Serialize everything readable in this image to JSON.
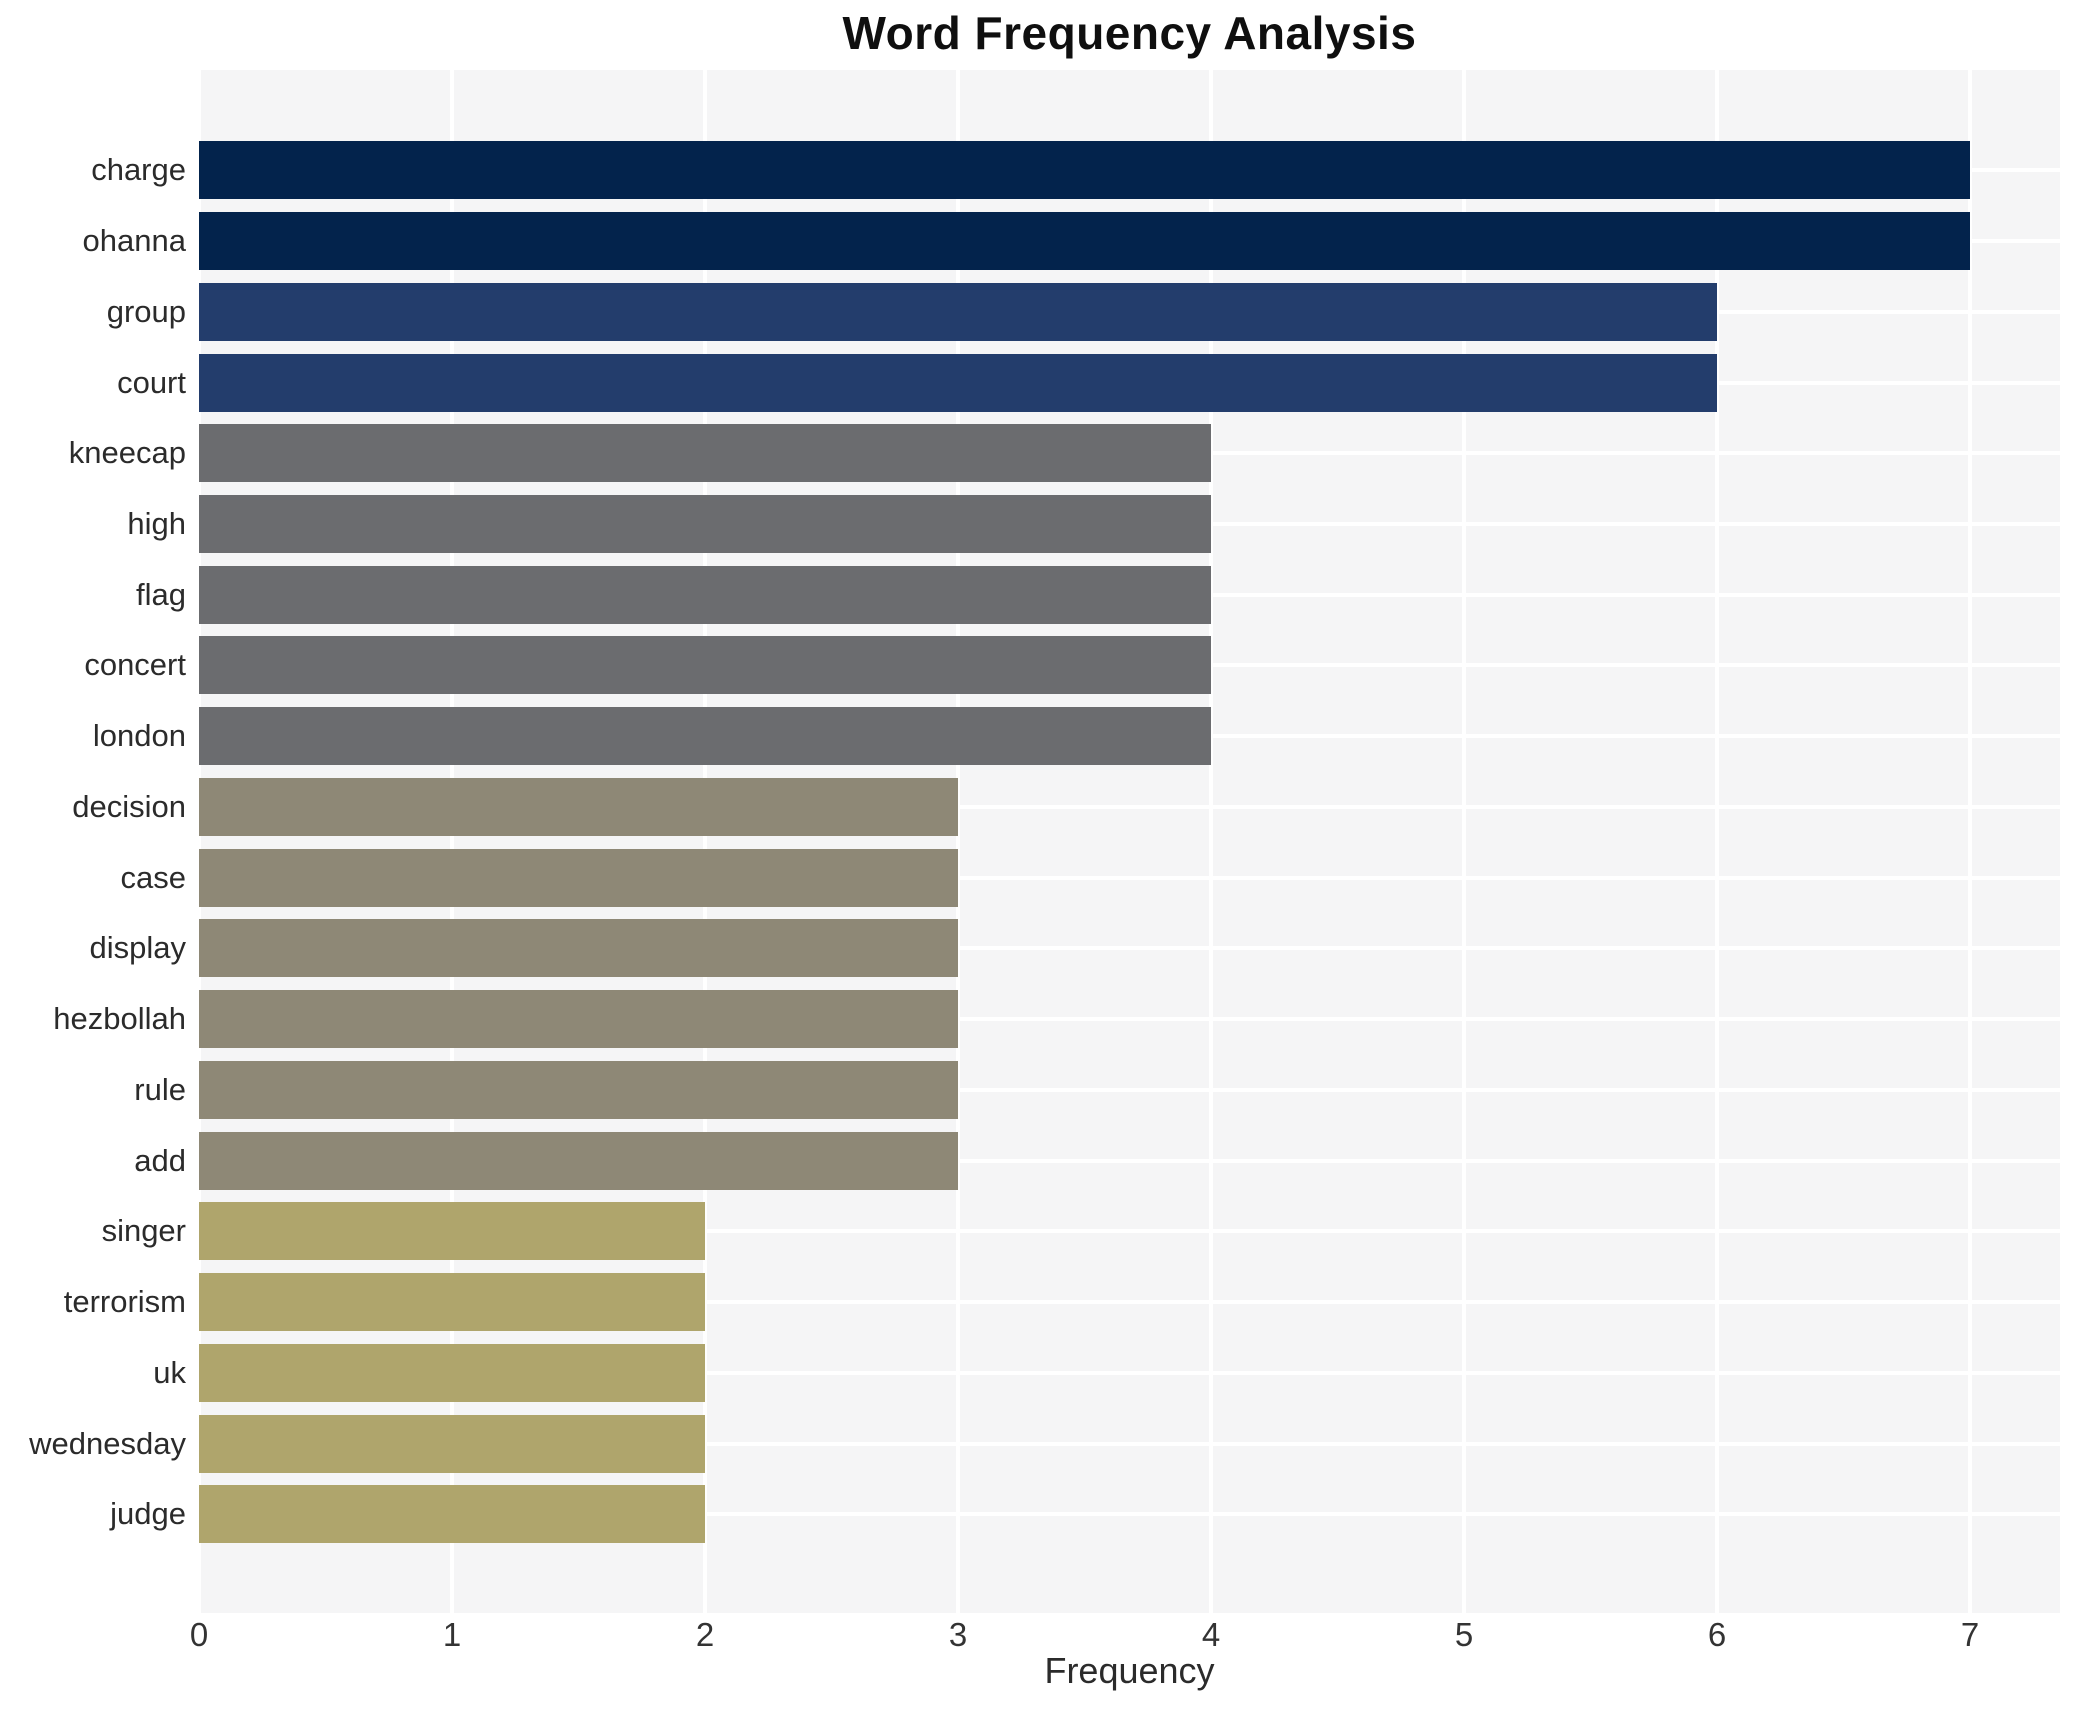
{
  "chart_data": {
    "type": "bar",
    "orientation": "horizontal",
    "title": "Word Frequency Analysis",
    "xlabel": "Frequency",
    "ylabel": "",
    "categories": [
      "charge",
      "ohanna",
      "group",
      "court",
      "kneecap",
      "high",
      "flag",
      "concert",
      "london",
      "decision",
      "case",
      "display",
      "hezbollah",
      "rule",
      "add",
      "singer",
      "terrorism",
      "uk",
      "wednesday",
      "judge"
    ],
    "values": [
      7,
      7,
      6,
      6,
      4,
      4,
      4,
      4,
      4,
      3,
      3,
      3,
      3,
      3,
      3,
      2,
      2,
      2,
      2,
      2
    ],
    "xlim": [
      0,
      7
    ],
    "xticks": [
      0,
      1,
      2,
      3,
      4,
      5,
      6,
      7
    ],
    "grid": true,
    "legend": "none",
    "colors": {
      "page_background": "#ffffff",
      "plot_background": "#f5f5f6",
      "gridline": "#ffffff",
      "title_text": "#0f0f0f",
      "tick_text": "#2b2b2b",
      "value_colors": {
        "7": "#03234c",
        "6": "#233d6c",
        "4": "#6b6c6f",
        "3": "#8e8876",
        "2": "#afa56c"
      }
    }
  }
}
